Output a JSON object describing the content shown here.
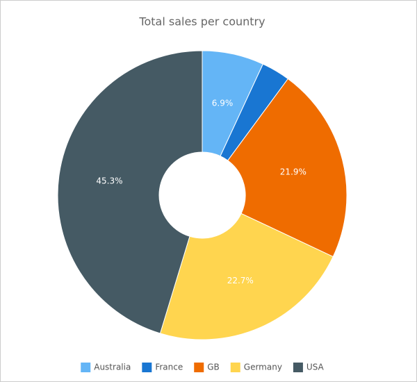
{
  "chart_data": {
    "type": "donut",
    "title": "Total sales per country",
    "categories": [
      "Australia",
      "France",
      "GB",
      "Germany",
      "USA"
    ],
    "values": [
      6.9,
      3.2,
      21.9,
      22.7,
      45.3
    ],
    "value_labels": [
      "6.9%",
      null,
      "21.9%",
      "22.7%",
      "45.3%"
    ],
    "colors": [
      "#64b5f6",
      "#1976d2",
      "#ef6c00",
      "#ffd54f",
      "#455a64"
    ],
    "legend": "bottom"
  }
}
